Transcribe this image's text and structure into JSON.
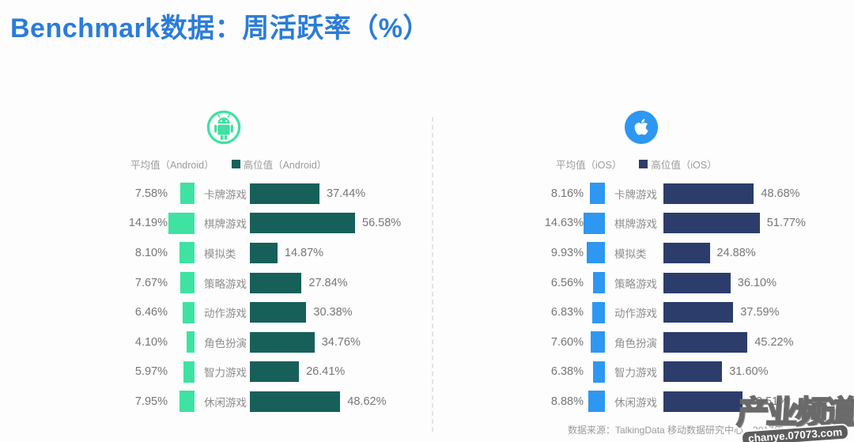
{
  "title": "Benchmark数据：周活跃率（%）",
  "source_note": "数据来源：TalkingData 移动数据研究中心，2017年",
  "watermark": {
    "name": "产业频道",
    "site": "chanye.07073.com"
  },
  "colors": {
    "title_blue": "#2b7cd9",
    "android_avg": "#3ee2a2",
    "android_high": "#17605a",
    "ios_avg": "#2e97f2",
    "ios_high": "#2c3d6b",
    "label_gray": "#8e8e8e"
  },
  "chart_data": [
    {
      "type": "bar",
      "platform": "Android",
      "icon": "android-icon",
      "legend": [
        "平均值（Android）",
        "高位值（Android）"
      ],
      "legend_position": "top",
      "axis": "none",
      "xlim": [
        0,
        60
      ],
      "categories": [
        "卡牌游戏",
        "棋牌游戏",
        "模拟类",
        "策略游戏",
        "动作游戏",
        "角色扮演",
        "智力游戏",
        "休闲游戏"
      ],
      "series": [
        {
          "name": "平均值（Android）",
          "role": "average",
          "color": "#3ee2a2",
          "values": [
            7.58,
            14.19,
            8.1,
            7.67,
            6.46,
            4.1,
            5.97,
            7.95
          ],
          "labels": [
            "7.58%",
            "14.19%",
            "8.10%",
            "7.67%",
            "6.46%",
            "4.10%",
            "5.97%",
            "7.95%"
          ]
        },
        {
          "name": "高位值（Android）",
          "role": "high",
          "color": "#17605a",
          "values": [
            37.44,
            56.58,
            14.87,
            27.84,
            30.38,
            34.76,
            26.41,
            48.62
          ],
          "labels": [
            "37.44%",
            "56.58%",
            "14.87%",
            "27.84%",
            "30.38%",
            "34.76%",
            "26.41%",
            "48.62%"
          ]
        }
      ]
    },
    {
      "type": "bar",
      "platform": "iOS",
      "icon": "apple-icon",
      "legend": [
        "平均值（iOS）",
        "高位值（iOS）"
      ],
      "legend_position": "top",
      "axis": "none",
      "xlim": [
        0,
        60
      ],
      "categories": [
        "卡牌游戏",
        "棋牌游戏",
        "模拟类",
        "策略游戏",
        "动作游戏",
        "角色扮演",
        "智力游戏",
        "休闲游戏"
      ],
      "series": [
        {
          "name": "平均值（iOS）",
          "role": "average",
          "color": "#2e97f2",
          "values": [
            8.16,
            14.63,
            9.93,
            6.56,
            6.83,
            7.6,
            6.38,
            8.88
          ],
          "labels": [
            "8.16%",
            "14.63%",
            "9.93%",
            "6.56%",
            "6.83%",
            "7.60%",
            "6.38%",
            "8.88%"
          ]
        },
        {
          "name": "高位值（iOS）",
          "role": "high",
          "color": "#2c3d6b",
          "values": [
            48.68,
            51.77,
            24.88,
            36.1,
            37.59,
            45.22,
            31.6,
            42.51
          ],
          "labels": [
            "48.68%",
            "51.77%",
            "24.88%",
            "36.10%",
            "37.59%",
            "45.22%",
            "31.60%",
            "42.51%"
          ]
        }
      ]
    }
  ]
}
